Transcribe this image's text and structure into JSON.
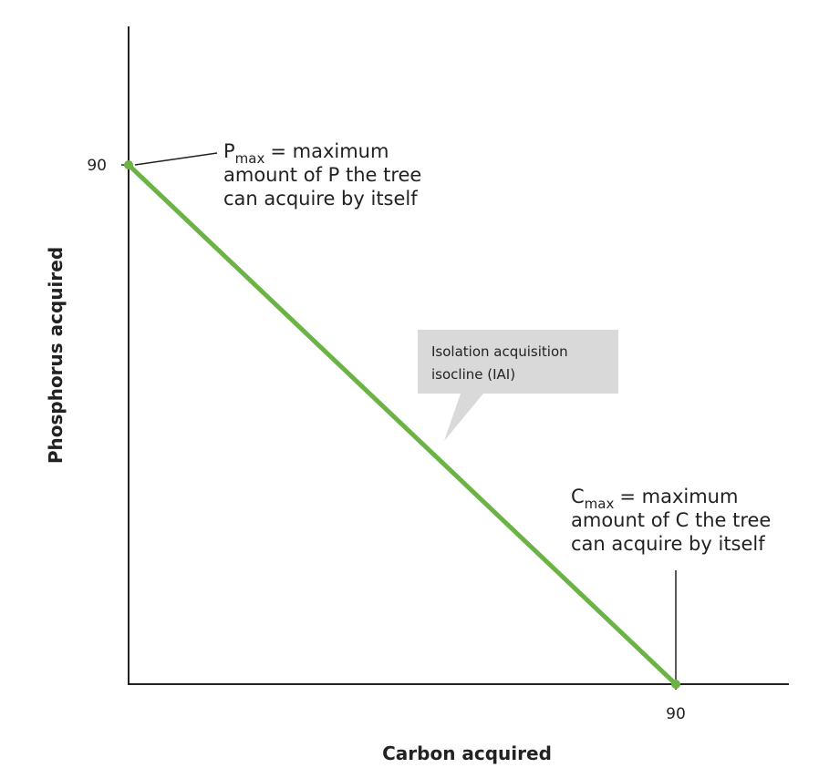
{
  "chart_data": {
    "type": "line",
    "x_label": "Carbon acquired",
    "y_label": "Phosphorus acquired",
    "x": [
      0,
      90
    ],
    "values": [
      90,
      0
    ],
    "color": "#6ab344",
    "xlim": [
      0,
      108
    ],
    "ylim": [
      0,
      114
    ],
    "xticks": [
      90
    ],
    "yticks": [
      90
    ],
    "annotations": [
      {
        "symbol": "P",
        "subscript": "max",
        "lines": [
          "= maximum",
          "amount of P the tree",
          "can acquire by itself"
        ]
      },
      {
        "symbol": "C",
        "subscript": "max",
        "lines": [
          "= maximum",
          "amount of C the tree",
          "can acquire by itself"
        ]
      }
    ],
    "callout": [
      "Isolation acquisition",
      "isocline (IAI)"
    ]
  }
}
